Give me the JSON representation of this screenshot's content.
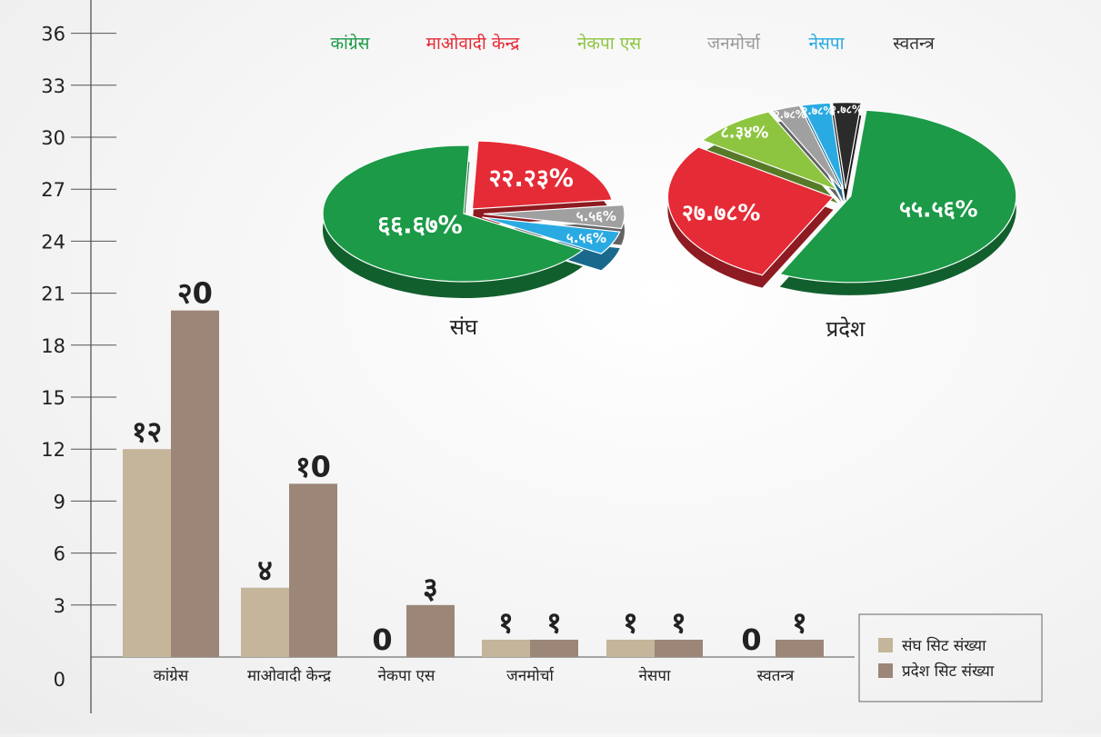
{
  "chart_data": [
    {
      "type": "bar",
      "categories": [
        "कांग्रेस",
        "माओवादी केन्द्र",
        "नेकपा एस",
        "जनमोर्चा",
        "नेसपा",
        "स्वतन्त्र"
      ],
      "y_ticks": [
        "0",
        "3",
        "6",
        "9",
        "12",
        "15",
        "18",
        "21",
        "24",
        "27",
        "30",
        "33",
        "36"
      ],
      "ylim": [
        0,
        36
      ],
      "grid": false,
      "legend_position": "bottom-right",
      "series": [
        {
          "name": "संघ सिट संख्या",
          "color": "#c4b59b",
          "values": [
            12,
            4,
            0,
            1,
            1,
            0
          ],
          "labels": [
            "१२",
            "४",
            "0",
            "१",
            "१",
            "0"
          ]
        },
        {
          "name": "प्रदेश सिट संख्या",
          "color": "#9c8677",
          "values": [
            20,
            10,
            3,
            1,
            1,
            1
          ],
          "labels": [
            "२0",
            "१0",
            "३",
            "१",
            "१",
            "१"
          ]
        }
      ]
    },
    {
      "type": "pie",
      "title": "संघ",
      "slices": [
        {
          "category": "कांग्रेस",
          "value": 66.67,
          "label": "६६.६७%"
        },
        {
          "category": "माओवादी केन्द्र",
          "value": 22.23,
          "label": "२२.२३%"
        },
        {
          "category": "जनमोर्चा",
          "value": 5.56,
          "label": "५.५६%"
        },
        {
          "category": "नेसपा",
          "value": 5.56,
          "label": "५.५६%"
        }
      ]
    },
    {
      "type": "pie",
      "title": "प्रदेश",
      "slices": [
        {
          "category": "कांग्रेस",
          "value": 55.56,
          "label": "५५.५६%"
        },
        {
          "category": "माओवादी केन्द्र",
          "value": 27.78,
          "label": "२७.७८%"
        },
        {
          "category": "नेकपा एस",
          "value": 8.34,
          "label": "८.३४%"
        },
        {
          "category": "जनमोर्चा",
          "value": 2.78,
          "label": "२.७८%"
        },
        {
          "category": "नेसपा",
          "value": 2.78,
          "label": "२.७८%"
        },
        {
          "category": "स्वतन्त्र",
          "value": 2.78,
          "label": "२.७८%"
        }
      ]
    }
  ],
  "pie_legend": [
    {
      "label": "कांग्रेस",
      "color": "#1c9a48"
    },
    {
      "label": "माओवादी केन्द्र",
      "color": "#e52b36"
    },
    {
      "label": "नेकपा एस",
      "color": "#8dc540"
    },
    {
      "label": "जनमोर्चा",
      "color": "#9a9a9a"
    },
    {
      "label": "नेसपा",
      "color": "#27a9e1"
    },
    {
      "label": "स्वतन्त्र",
      "color": "#333333"
    }
  ],
  "colors": {
    "कांग्रेस": "#1c9a48",
    "माओवादी केन्द्र": "#e52b36",
    "नेकपा एस": "#8dc540",
    "जनमोर्चा": "#a0a0a0",
    "नेसपा": "#2aaae2",
    "स्वतन्त्र": "#2b2b2b",
    "axis": "#555555"
  }
}
